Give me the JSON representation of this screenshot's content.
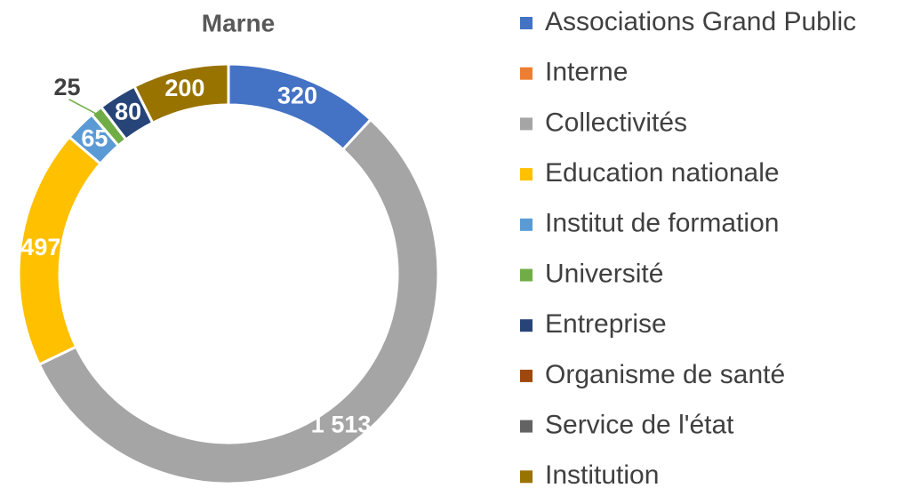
{
  "chart_data": {
    "type": "donut",
    "title": "Marne",
    "categories": [
      "Associations  Grand Public",
      "Interne",
      "Collectivités",
      "Education nationale",
      "Institut de formation",
      "Université",
      "Entreprise",
      "Organisme de santé",
      "Service de l'état",
      "Institution"
    ],
    "values": [
      320,
      0,
      1513,
      497,
      65,
      25,
      80,
      0,
      0,
      200
    ],
    "value_labels": [
      "320",
      null,
      "1 513",
      "497",
      "65",
      "25",
      "80",
      null,
      null,
      "200"
    ],
    "colors": [
      "#4472c4",
      "#ed7d31",
      "#a5a5a5",
      "#ffc000",
      "#5b9bd5",
      "#70ad47",
      "#264478",
      "#9e480e",
      "#636363",
      "#997300"
    ],
    "legend": "right"
  }
}
